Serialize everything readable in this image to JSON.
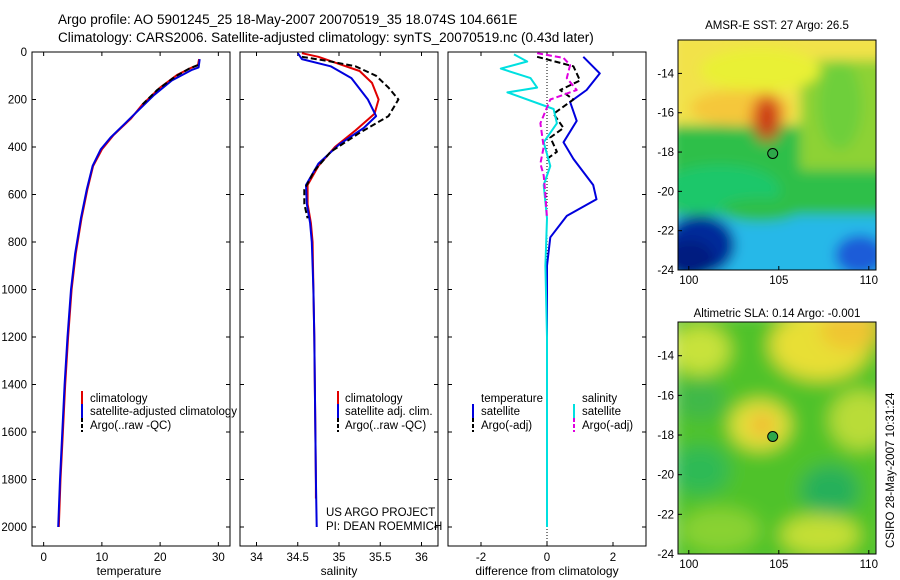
{
  "header": {
    "line1": "Argo profile: AO 5901245_25 18-May-2007 20070519_35 18.074S 104.661E",
    "line2": "Climatology: CARS2006. Satellite-adjusted climatology: synTS_20070519.nc (0.43d later)"
  },
  "colors": {
    "red": "#e00000",
    "blue": "#0000dd",
    "black": "#000000",
    "cyan": "#00e0e0",
    "magenta": "#e000e0"
  },
  "chart_data": [
    {
      "type": "line",
      "xlabel": "temperature",
      "ylabel": "",
      "xlim": [
        -2,
        32
      ],
      "ylim": [
        2080,
        0
      ],
      "xticks": [
        0,
        10,
        20,
        30
      ],
      "yticks": [
        0,
        200,
        400,
        600,
        800,
        1000,
        1200,
        1400,
        1600,
        1800,
        2000
      ],
      "legend": [
        "climatology",
        "satellite-adjusted climatology",
        "Argo(..raw -QC)"
      ],
      "series": [
        {
          "name": "climatology",
          "color": "red",
          "dash": false,
          "points": [
            [
              26.7,
              30
            ],
            [
              26.5,
              55
            ],
            [
              25.5,
              65
            ],
            [
              23,
              95
            ],
            [
              20,
              150
            ],
            [
              17,
              220
            ],
            [
              15,
              280
            ],
            [
              12,
              350
            ],
            [
              10,
              410
            ],
            [
              8.5,
              480
            ],
            [
              7.5,
              580
            ],
            [
              6.5,
              700
            ],
            [
              5.5,
              850
            ],
            [
              4.8,
              1000
            ],
            [
              4.2,
              1200
            ],
            [
              3.7,
              1400
            ],
            [
              3.3,
              1600
            ],
            [
              2.9,
              1800
            ],
            [
              2.6,
              2000
            ]
          ]
        },
        {
          "name": "satellite-adjusted climatology",
          "color": "blue",
          "dash": false,
          "points": [
            [
              26.8,
              30
            ],
            [
              26.6,
              65
            ],
            [
              25.5,
              75
            ],
            [
              22,
              120
            ],
            [
              19,
              180
            ],
            [
              16.5,
              240
            ],
            [
              14,
              300
            ],
            [
              11.5,
              360
            ],
            [
              9.8,
              410
            ],
            [
              8.4,
              480
            ],
            [
              7.4,
              580
            ],
            [
              6.4,
              700
            ],
            [
              5.4,
              850
            ],
            [
              4.7,
              1000
            ],
            [
              4.1,
              1200
            ],
            [
              3.6,
              1400
            ],
            [
              3.2,
              1600
            ],
            [
              2.8,
              1800
            ],
            [
              2.5,
              2000
            ]
          ]
        },
        {
          "name": "Argo(..raw -QC)",
          "color": "black",
          "dash": true,
          "points": [
            [
              26.5,
              55
            ],
            [
              25,
              70
            ],
            [
              22.5,
              105
            ],
            [
              19.5,
              160
            ],
            [
              17,
              220
            ]
          ]
        }
      ]
    },
    {
      "type": "line",
      "xlabel": "salinity",
      "xlim": [
        33.8,
        36.2
      ],
      "ylim": [
        2080,
        0
      ],
      "xticks": [
        34,
        34.5,
        35,
        35.5,
        36
      ],
      "legend": [
        "climatology",
        "satellite adj. clim.",
        "Argo(..raw -QC)"
      ],
      "annotation": [
        "US ARGO PROJECT",
        "PI: DEAN ROEMMICH"
      ],
      "series": [
        {
          "name": "climatology",
          "color": "red",
          "dash": false,
          "points": [
            [
              34.55,
              5
            ],
            [
              34.75,
              20
            ],
            [
              35,
              50
            ],
            [
              35.25,
              80
            ],
            [
              35.4,
              130
            ],
            [
              35.48,
              200
            ],
            [
              35.43,
              260
            ],
            [
              35.2,
              330
            ],
            [
              34.95,
              400
            ],
            [
              34.75,
              480
            ],
            [
              34.62,
              560
            ],
            [
              34.62,
              640
            ],
            [
              34.66,
              720
            ],
            [
              34.68,
              800
            ],
            [
              34.69,
              1000
            ],
            [
              34.7,
              1200
            ],
            [
              34.71,
              1500
            ],
            [
              34.72,
              1800
            ],
            [
              34.72,
              1880
            ]
          ]
        },
        {
          "name": "satellite adj. clim.",
          "color": "blue",
          "dash": false,
          "points": [
            [
              34.5,
              5
            ],
            [
              34.55,
              30
            ],
            [
              34.9,
              60
            ],
            [
              35.15,
              110
            ],
            [
              35.35,
              200
            ],
            [
              35.45,
              270
            ],
            [
              35.3,
              320
            ],
            [
              35,
              390
            ],
            [
              34.75,
              470
            ],
            [
              34.6,
              560
            ],
            [
              34.61,
              640
            ],
            [
              34.65,
              720
            ],
            [
              34.67,
              800
            ],
            [
              34.69,
              1000
            ],
            [
              34.7,
              1200
            ],
            [
              34.71,
              1500
            ],
            [
              34.72,
              1800
            ],
            [
              34.73,
              2000
            ]
          ]
        },
        {
          "name": "Argo(..raw -QC)",
          "color": "black",
          "dash": true,
          "points": [
            [
              34.55,
              20
            ],
            [
              34.9,
              40
            ],
            [
              35.2,
              60
            ],
            [
              35.45,
              100
            ],
            [
              35.6,
              150
            ],
            [
              35.72,
              200
            ],
            [
              35.6,
              270
            ],
            [
              35.25,
              340
            ],
            [
              34.9,
              420
            ],
            [
              34.7,
              500
            ],
            [
              34.58,
              580
            ],
            [
              34.58,
              640
            ],
            [
              34.62,
              700
            ]
          ]
        }
      ]
    },
    {
      "type": "line",
      "xlabel": "difference from climatology",
      "xlim": [
        -3,
        3
      ],
      "ylim": [
        2080,
        0
      ],
      "xticks": [
        -2,
        0,
        2
      ],
      "legend": [
        "temperature",
        "satellite",
        "Argo(-adj)",
        "salinity",
        "satellite",
        "Argo(-adj)"
      ],
      "series": [
        {
          "name": "temperature satellite",
          "color": "blue",
          "dash": false,
          "points": [
            [
              1.1,
              20
            ],
            [
              1.6,
              90
            ],
            [
              1.2,
              160
            ],
            [
              0.7,
              210
            ],
            [
              0.9,
              290
            ],
            [
              0.5,
              380
            ],
            [
              0.8,
              450
            ],
            [
              1.4,
              560
            ],
            [
              1.5,
              620
            ],
            [
              0.6,
              690
            ],
            [
              0.1,
              780
            ],
            [
              0,
              900
            ],
            [
              0,
              1100
            ],
            [
              0,
              1400
            ],
            [
              0,
              1700
            ],
            [
              0,
              2000
            ]
          ]
        },
        {
          "name": "temperature Argo(-adj)",
          "color": "black",
          "dash": true,
          "points": [
            [
              -0.3,
              20
            ],
            [
              0.8,
              60
            ],
            [
              1,
              120
            ],
            [
              0.4,
              160
            ],
            [
              0.8,
              200
            ],
            [
              0.2,
              260
            ],
            [
              0.5,
              320
            ],
            [
              0.1,
              360
            ],
            [
              0.3,
              420
            ],
            [
              0,
              450
            ]
          ]
        },
        {
          "name": "salinity satellite",
          "color": "cyan",
          "dash": false,
          "points": [
            [
              -1,
              10
            ],
            [
              -0.6,
              40
            ],
            [
              -1.4,
              70
            ],
            [
              -0.5,
              110
            ],
            [
              -0.3,
              150
            ],
            [
              -1.2,
              170
            ],
            [
              0.2,
              240
            ],
            [
              0.3,
              300
            ],
            [
              -0.1,
              380
            ],
            [
              0.1,
              480
            ],
            [
              -0.1,
              560
            ],
            [
              0,
              700
            ],
            [
              -0.05,
              900
            ],
            [
              0,
              1200
            ],
            [
              0,
              1600
            ],
            [
              0,
              2000
            ]
          ]
        },
        {
          "name": "salinity Argo(-adj)",
          "color": "magenta",
          "dash": true,
          "points": [
            [
              -0.3,
              5
            ],
            [
              0.5,
              25
            ],
            [
              0.7,
              55
            ],
            [
              0.6,
              110
            ],
            [
              0.9,
              160
            ],
            [
              0.1,
              200
            ],
            [
              -0.2,
              300
            ],
            [
              -0.1,
              400
            ],
            [
              -0.2,
              470
            ],
            [
              -0.1,
              520
            ],
            [
              -0.05,
              600
            ],
            [
              0,
              700
            ]
          ]
        }
      ]
    },
    {
      "type": "heatmap",
      "title": "AMSR-E SST: 27  Argo: 26.5",
      "xlim": [
        99.4,
        110.4
      ],
      "ylim": [
        -24,
        -12.3
      ],
      "xticks": [
        100,
        105,
        110
      ],
      "yticks": [
        -14,
        -16,
        -18,
        -20,
        -22,
        -24
      ],
      "marker": [
        104.661,
        -18.074
      ]
    },
    {
      "type": "heatmap",
      "title": "Altimetric SLA: 0.14  Argo: -0.001",
      "xlim": [
        99.4,
        110.4
      ],
      "ylim": [
        -24,
        -12.3
      ],
      "xticks": [
        100,
        105,
        110
      ],
      "yticks": [
        -14,
        -16,
        -18,
        -20,
        -22,
        -24
      ],
      "marker": [
        104.661,
        -18.074
      ]
    }
  ],
  "credit": "CSIRO 28-May-2007 10:31:24"
}
